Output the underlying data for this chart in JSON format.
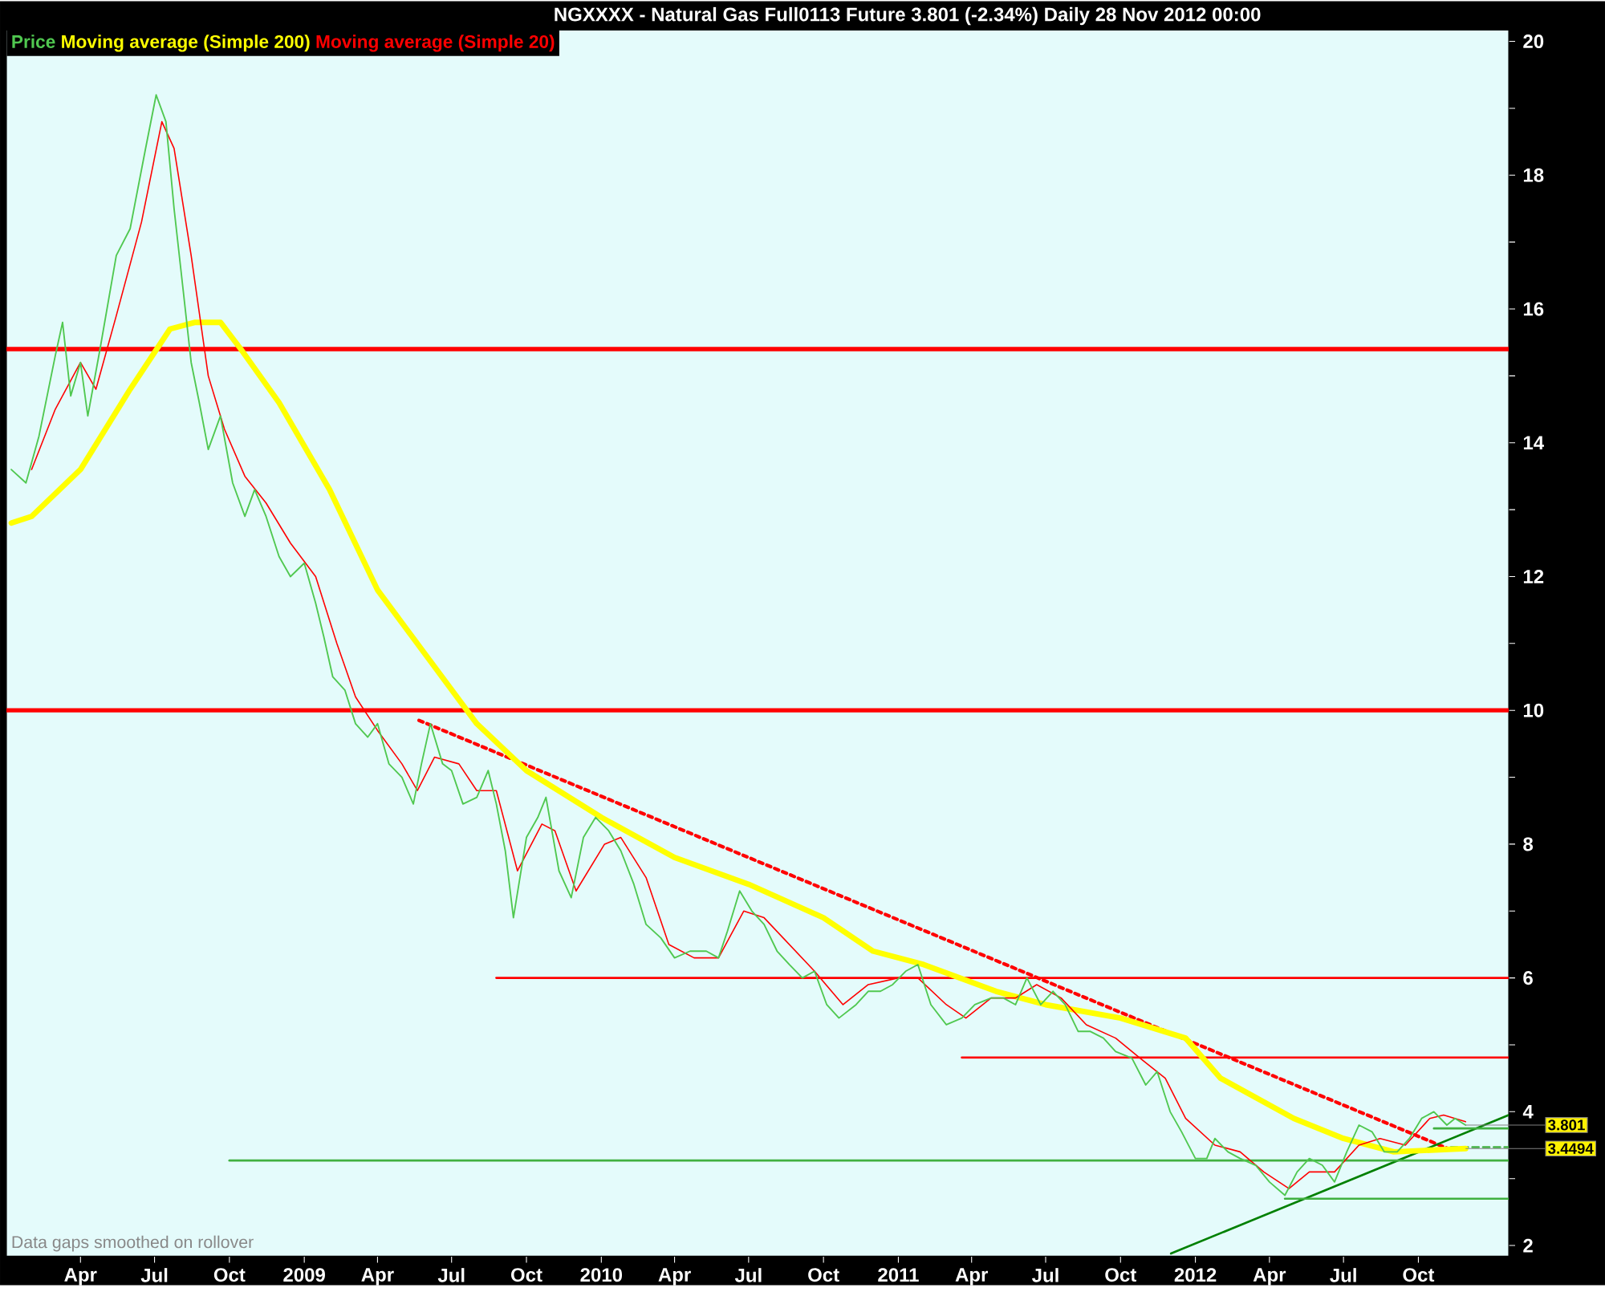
{
  "chart_data": {
    "type": "line",
    "title": "NGXXXX - Natural Gas Full0113 Future    3.801 (-2.34%)    Daily  28 Nov 2012 00:00",
    "xlim": [
      "2008-01-01",
      "2013-01-20"
    ],
    "ylim": [
      1.84,
      20.17
    ],
    "xticks": [
      {
        "value": "2008-04-01",
        "label": "Apr"
      },
      {
        "value": "2008-07-01",
        "label": "Jul"
      },
      {
        "value": "2008-10-01",
        "label": "Oct"
      },
      {
        "value": "2009-01-01",
        "label": "2009"
      },
      {
        "value": "2009-04-01",
        "label": "Apr"
      },
      {
        "value": "2009-07-01",
        "label": "Jul"
      },
      {
        "value": "2009-10-01",
        "label": "Oct"
      },
      {
        "value": "2010-01-01",
        "label": "2010"
      },
      {
        "value": "2010-04-01",
        "label": "Apr"
      },
      {
        "value": "2010-07-01",
        "label": "Jul"
      },
      {
        "value": "2010-10-01",
        "label": "Oct"
      },
      {
        "value": "2011-01-01",
        "label": "2011"
      },
      {
        "value": "2011-04-01",
        "label": "Apr"
      },
      {
        "value": "2011-07-01",
        "label": "Jul"
      },
      {
        "value": "2011-10-01",
        "label": "Oct"
      },
      {
        "value": "2012-01-01",
        "label": "2012"
      },
      {
        "value": "2012-04-01",
        "label": "Apr"
      },
      {
        "value": "2012-07-01",
        "label": "Jul"
      },
      {
        "value": "2012-10-01",
        "label": "Oct"
      }
    ],
    "yticks": [
      2,
      {
        "value": 3,
        "label": null
      },
      4,
      {
        "value": 5,
        "label": null
      },
      6,
      {
        "value": 7,
        "label": null
      },
      8,
      {
        "value": 9,
        "label": null
      },
      10,
      {
        "value": 11,
        "label": null
      },
      12,
      {
        "value": 13,
        "label": null
      },
      14,
      {
        "value": 15,
        "label": null
      },
      16,
      {
        "value": 17,
        "label": null
      },
      18,
      {
        "value": 19,
        "label": null
      },
      20
    ],
    "legend": "top left",
    "marker": "none",
    "ref_lines": [
      {
        "axis": "y",
        "value": 15.4,
        "color": "#ff0000"
      },
      {
        "axis": "y",
        "value": 10.0,
        "color": "#ff0000"
      }
    ],
    "annotations": [
      "Data gaps smoothed on rollover",
      {
        "text": "3.801",
        "x": "2012-11-28",
        "y": 3.801
      },
      {
        "text": "3.4494",
        "x": "2012-11-28",
        "y": 3.4494
      }
    ],
    "series": [
      {
        "name": "Price",
        "color": "#50c850",
        "x": [
          "2008-01-07",
          "2008-01-25",
          "2008-02-10",
          "2008-03-01",
          "2008-03-10",
          "2008-03-20",
          "2008-04-01",
          "2008-04-10",
          "2008-04-25",
          "2008-05-15",
          "2008-06-01",
          "2008-06-20",
          "2008-07-03",
          "2008-07-15",
          "2008-07-25",
          "2008-08-05",
          "2008-08-15",
          "2008-08-25",
          "2008-09-05",
          "2008-09-20",
          "2008-10-05",
          "2008-10-20",
          "2008-11-01",
          "2008-11-15",
          "2008-12-01",
          "2008-12-15",
          "2009-01-01",
          "2009-01-15",
          "2009-01-25",
          "2009-02-05",
          "2009-02-20",
          "2009-03-05",
          "2009-03-20",
          "2009-04-01",
          "2009-04-15",
          "2009-05-01",
          "2009-05-15",
          "2009-05-25",
          "2009-06-05",
          "2009-06-20",
          "2009-07-01",
          "2009-07-15",
          "2009-08-01",
          "2009-08-15",
          "2009-08-25",
          "2009-09-05",
          "2009-09-15",
          "2009-10-01",
          "2009-10-15",
          "2009-10-25",
          "2009-11-10",
          "2009-11-25",
          "2009-12-10",
          "2009-12-25",
          "2010-01-10",
          "2010-01-25",
          "2010-02-10",
          "2010-02-25",
          "2010-03-15",
          "2010-04-01",
          "2010-04-20",
          "2010-05-10",
          "2010-05-25",
          "2010-06-05",
          "2010-06-20",
          "2010-07-05",
          "2010-07-20",
          "2010-08-05",
          "2010-08-20",
          "2010-09-05",
          "2010-09-20",
          "2010-10-05",
          "2010-10-20",
          "2010-11-10",
          "2010-11-25",
          "2010-12-10",
          "2010-12-25",
          "2011-01-10",
          "2011-01-25",
          "2011-02-10",
          "2011-03-01",
          "2011-03-20",
          "2011-04-05",
          "2011-04-25",
          "2011-05-10",
          "2011-05-25",
          "2011-06-08",
          "2011-06-25",
          "2011-07-10",
          "2011-07-25",
          "2011-08-10",
          "2011-08-25",
          "2011-09-10",
          "2011-09-25",
          "2011-10-15",
          "2011-11-01",
          "2011-11-15",
          "2011-12-01",
          "2011-12-15",
          "2012-01-01",
          "2012-01-15",
          "2012-01-25",
          "2012-02-10",
          "2012-02-25",
          "2012-03-15",
          "2012-04-01",
          "2012-04-20",
          "2012-05-05",
          "2012-05-20",
          "2012-06-05",
          "2012-06-20",
          "2012-07-05",
          "2012-07-20",
          "2012-08-05",
          "2012-08-20",
          "2012-09-05",
          "2012-09-20",
          "2012-10-05",
          "2012-10-20",
          "2012-11-05",
          "2012-11-15",
          "2012-11-28"
        ],
        "values": [
          13.6,
          13.4,
          14.1,
          15.3,
          15.8,
          14.7,
          15.2,
          14.4,
          15.4,
          16.8,
          17.2,
          18.4,
          19.2,
          18.8,
          17.5,
          16.3,
          15.2,
          14.6,
          13.9,
          14.4,
          13.4,
          12.9,
          13.3,
          12.9,
          12.3,
          12.0,
          12.2,
          11.6,
          11.1,
          10.5,
          10.3,
          9.8,
          9.6,
          9.8,
          9.2,
          9.0,
          8.6,
          9.2,
          9.8,
          9.2,
          9.1,
          8.6,
          8.7,
          9.1,
          8.6,
          7.9,
          6.9,
          8.1,
          8.4,
          8.7,
          7.6,
          7.2,
          8.1,
          8.4,
          8.2,
          7.9,
          7.4,
          6.8,
          6.6,
          6.3,
          6.4,
          6.4,
          6.3,
          6.7,
          7.3,
          7.0,
          6.8,
          6.4,
          6.2,
          6.0,
          6.1,
          5.6,
          5.4,
          5.6,
          5.8,
          5.8,
          5.9,
          6.1,
          6.2,
          5.6,
          5.3,
          5.4,
          5.6,
          5.7,
          5.7,
          5.6,
          6.0,
          5.6,
          5.8,
          5.6,
          5.2,
          5.2,
          5.1,
          4.9,
          4.8,
          4.4,
          4.6,
          4.0,
          3.7,
          3.3,
          3.3,
          3.6,
          3.4,
          3.3,
          3.2,
          2.95,
          2.75,
          3.1,
          3.3,
          3.2,
          2.95,
          3.4,
          3.8,
          3.7,
          3.4,
          3.4,
          3.6,
          3.9,
          4.0,
          3.8,
          3.9,
          3.801
        ]
      },
      {
        "name": "Moving average (Simple 200)",
        "color": "#ffff00",
        "x": [
          "2008-01-07",
          "2008-02-01",
          "2008-04-01",
          "2008-06-01",
          "2008-07-20",
          "2008-08-20",
          "2008-09-20",
          "2008-10-15",
          "2008-12-01",
          "2009-02-01",
          "2009-04-01",
          "2009-06-01",
          "2009-08-01",
          "2009-10-01",
          "2010-01-01",
          "2010-04-01",
          "2010-07-01",
          "2010-10-01",
          "2010-12-01",
          "2011-02-01",
          "2011-05-01",
          "2011-07-01",
          "2011-10-01",
          "2011-12-20",
          "2012-02-01",
          "2012-05-01",
          "2012-07-01",
          "2012-09-01",
          "2012-11-28"
        ],
        "values": [
          12.8,
          12.9,
          13.6,
          14.8,
          15.7,
          15.8,
          15.8,
          15.4,
          14.6,
          13.3,
          11.8,
          10.8,
          9.8,
          9.1,
          8.4,
          7.8,
          7.4,
          6.9,
          6.4,
          6.2,
          5.8,
          5.6,
          5.4,
          5.1,
          4.5,
          3.9,
          3.6,
          3.4,
          3.4494
        ]
      },
      {
        "name": "Moving average (Simple 20)",
        "color": "#ff0000",
        "x": [
          "2008-02-01",
          "2008-03-01",
          "2008-04-01",
          "2008-04-20",
          "2008-05-15",
          "2008-06-15",
          "2008-07-10",
          "2008-07-25",
          "2008-08-15",
          "2008-09-05",
          "2008-09-25",
          "2008-10-20",
          "2008-11-15",
          "2008-12-15",
          "2009-01-15",
          "2009-02-10",
          "2009-03-05",
          "2009-04-01",
          "2009-05-01",
          "2009-05-20",
          "2009-06-10",
          "2009-07-10",
          "2009-08-01",
          "2009-08-25",
          "2009-09-20",
          "2009-10-20",
          "2009-11-05",
          "2009-12-01",
          "2010-01-05",
          "2010-01-25",
          "2010-02-25",
          "2010-03-25",
          "2010-04-25",
          "2010-05-25",
          "2010-06-25",
          "2010-07-20",
          "2010-08-20",
          "2010-09-20",
          "2010-10-25",
          "2010-11-25",
          "2011-01-01",
          "2011-01-25",
          "2011-03-01",
          "2011-03-25",
          "2011-04-25",
          "2011-05-25",
          "2011-06-20",
          "2011-07-20",
          "2011-08-20",
          "2011-09-25",
          "2011-10-25",
          "2011-11-25",
          "2011-12-20",
          "2012-01-25",
          "2012-02-25",
          "2012-03-25",
          "2012-04-25",
          "2012-05-20",
          "2012-06-20",
          "2012-07-20",
          "2012-08-15",
          "2012-09-15",
          "2012-10-15",
          "2012-11-01",
          "2012-11-28"
        ],
        "values": [
          13.6,
          14.5,
          15.2,
          14.8,
          15.9,
          17.3,
          18.8,
          18.4,
          16.8,
          15.0,
          14.2,
          13.5,
          13.1,
          12.5,
          12.0,
          11.0,
          10.2,
          9.7,
          9.2,
          8.8,
          9.3,
          9.2,
          8.8,
          8.8,
          7.6,
          8.3,
          8.2,
          7.3,
          8.0,
          8.1,
          7.5,
          6.5,
          6.3,
          6.3,
          7.0,
          6.9,
          6.5,
          6.1,
          5.6,
          5.9,
          6.0,
          6.0,
          5.6,
          5.4,
          5.7,
          5.7,
          5.9,
          5.7,
          5.3,
          5.1,
          4.8,
          4.5,
          3.9,
          3.5,
          3.4,
          3.1,
          2.85,
          3.1,
          3.1,
          3.5,
          3.6,
          3.5,
          3.9,
          3.95,
          3.85
        ]
      },
      {
        "color": "#ff0000",
        "line_style": "dotted",
        "x": [
          "2009-05-22",
          "2012-11-08"
        ],
        "values": [
          9.85,
          3.44
        ]
      },
      {
        "color": "#008000",
        "x": [
          "2011-12-02",
          "2013-01-20"
        ],
        "values": [
          1.88,
          3.95
        ]
      },
      {
        "color": "#ff0000",
        "x": [
          "2009-08-25",
          "2013-01-20"
        ],
        "values": [
          6.0,
          6.0
        ]
      },
      {
        "color": "#ff0000",
        "x": [
          "2011-03-20",
          "2013-01-20"
        ],
        "values": [
          4.81,
          4.81
        ]
      },
      {
        "color": "#40b040",
        "x": [
          "2008-10-01",
          "2013-01-20"
        ],
        "values": [
          3.27,
          3.27
        ]
      },
      {
        "color": "#40b040",
        "x": [
          "2012-04-20",
          "2013-01-20"
        ],
        "values": [
          2.7,
          2.7
        ]
      },
      {
        "color": "#40b040",
        "x": [
          "2012-10-20",
          "2013-01-20"
        ],
        "values": [
          3.75,
          3.75
        ]
      },
      {
        "color": "#40b040",
        "line_style": "dashed",
        "x": [
          "2012-11-10",
          "2013-01-20"
        ],
        "values": [
          3.47,
          3.47
        ]
      }
    ]
  }
}
